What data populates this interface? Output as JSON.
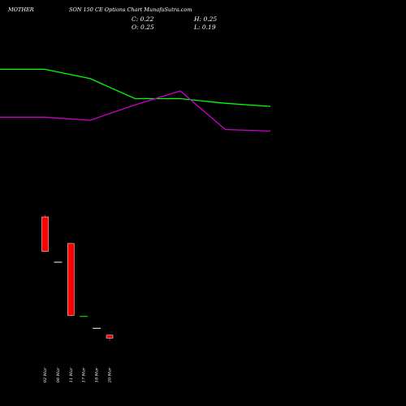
{
  "header": {
    "symbol": "MOTHERSON 150 CE Options Chart MunafaSutra.com",
    "title_left": "MOTHER",
    "title_mid": "SON 150 CE Options Chart MunafaSutra.com",
    "close": "C: 0.22",
    "open": "O: 0.25",
    "high": "H: 0.25",
    "low": "L: 0.19"
  },
  "colors": {
    "background": "#000000",
    "green_line": "#00ff00",
    "purple_line": "#cc00cc",
    "bear_candle": "#ff0000",
    "bull_candle": "#00ff00",
    "neutral": "#ffffff"
  },
  "chart_data": [
    {
      "type": "line",
      "series": [
        {
          "x": [
            0,
            1,
            2,
            3,
            4,
            5,
            6
          ],
          "values": [
            0.84,
            0.84,
            0.78,
            0.65,
            0.65,
            0.62,
            0.6
          ]
        },
        {
          "x": [
            0,
            1,
            2,
            3,
            4,
            5,
            6
          ],
          "values": [
            0.53,
            0.53,
            0.51,
            0.61,
            0.7,
            0.45,
            0.44
          ]
        }
      ],
      "grid": false
    },
    {
      "type": "bar",
      "title": "",
      "categories": [
        "02 Mar",
        "06 Mar",
        "11 Mar",
        "17 Mar",
        "18 Mar",
        "20 Mar"
      ],
      "candles": [
        {
          "date": "02 Mar",
          "open": 1.45,
          "high": 1.47,
          "low": 1.1,
          "close": 1.1
        },
        {
          "date": "06 Mar",
          "open": 0.99,
          "high": 0.99,
          "low": 0.99,
          "close": 0.99
        },
        {
          "date": "11 Mar",
          "open": 1.18,
          "high": 1.18,
          "low": 0.45,
          "close": 0.45
        },
        {
          "date": "17 Mar",
          "open": 0.44,
          "high": 0.44,
          "low": 0.44,
          "close": 0.44
        },
        {
          "date": "18 Mar",
          "open": 0.32,
          "high": 0.32,
          "low": 0.32,
          "close": 0.32
        },
        {
          "date": "20 Mar",
          "open": 0.25,
          "high": 0.25,
          "low": 0.19,
          "close": 0.22
        }
      ]
    }
  ]
}
